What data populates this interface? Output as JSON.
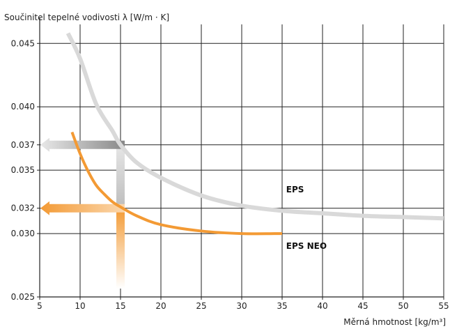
{
  "chart_data": {
    "type": "line",
    "ylabel": "Součinitel tepelné vodivosti λ [W/m · K]",
    "xlabel": "Měrná hmotnost [kg/m³]",
    "xlim": [
      5,
      55
    ],
    "ylim": [
      0.025,
      0.0465
    ],
    "x_ticks": [
      "5",
      "10",
      "15",
      "20",
      "25",
      "30",
      "35",
      "40",
      "45",
      "50",
      "55"
    ],
    "y_ticks": [
      "0.025",
      "0.030",
      "0.032",
      "0.035",
      "0.037",
      "0.040",
      "0.045"
    ],
    "grid": true,
    "series": [
      {
        "name": "EPS",
        "color": "#d9d9d9",
        "x": [
          8.5,
          10,
          12,
          14,
          15,
          17,
          20,
          25,
          30,
          35,
          40,
          45,
          50,
          55
        ],
        "y": [
          0.0458,
          0.0438,
          0.0402,
          0.0381,
          0.037,
          0.0356,
          0.0344,
          0.033,
          0.0322,
          0.0318,
          0.0316,
          0.0314,
          0.0313,
          0.0312
        ]
      },
      {
        "name": "EPS NEO",
        "color": "#f39a34",
        "x": [
          9,
          10,
          11,
          12,
          13,
          14,
          15,
          17,
          20,
          25,
          30,
          35
        ],
        "y": [
          0.038,
          0.0363,
          0.0349,
          0.0338,
          0.0331,
          0.0325,
          0.0321,
          0.0314,
          0.0307,
          0.0302,
          0.03,
          0.03
        ]
      }
    ],
    "annotations": [
      {
        "type": "arrow",
        "from_x": 15,
        "value_y": 0.037,
        "color": "#b0b0b0",
        "meaning": "EPS at 15 kg/m³"
      },
      {
        "type": "arrow",
        "from_x": 15,
        "value_y": 0.032,
        "color": "#f39a34",
        "meaning": "EPS NEO at 15 kg/m³"
      }
    ]
  }
}
